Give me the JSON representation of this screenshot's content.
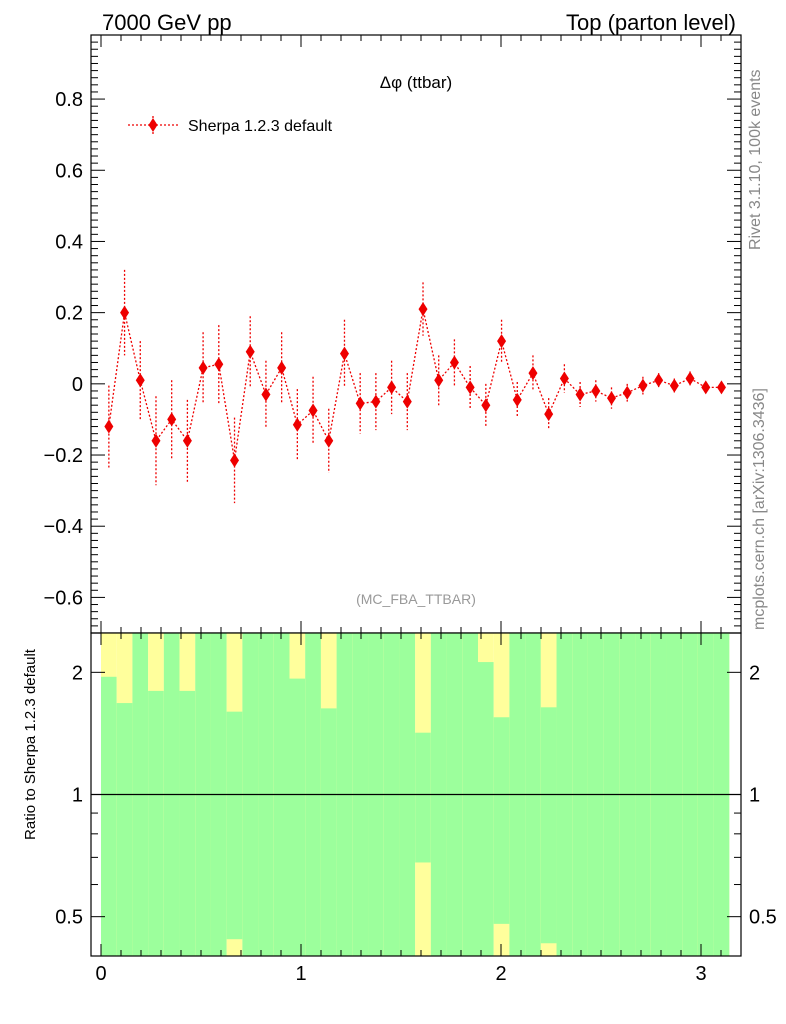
{
  "header": {
    "left": "7000 GeV pp",
    "right": "Top (parton level)"
  },
  "side": {
    "top": "Rivet 3.1.10,  100k events",
    "bottom": "mcplots.cern.ch [arXiv:1306.3436]"
  },
  "colors": {
    "series": "#ee0000",
    "band_inner": "#9cff9c",
    "band_outer": "#ffff9c",
    "ref_line": "#000000"
  },
  "chart_data": [
    {
      "type": "scatter",
      "title": "Δφ (ttbar)",
      "analysis_label": "(MC_FBA_TTBAR)",
      "xlim": [
        -0.05,
        3.2
      ],
      "ylim": [
        -0.7,
        0.98
      ],
      "yticks": [
        -0.6,
        -0.4,
        -0.2,
        0,
        0.2,
        0.4,
        0.6,
        0.8
      ],
      "ytick_labels": [
        "−0.6",
        "−0.4",
        "−0.2",
        "0",
        "0.2",
        "0.4",
        "0.6",
        "0.8"
      ],
      "legend_position": "top-left",
      "series": [
        {
          "name": "Sherpa 1.2.3 default",
          "style": "dotted line with diamond markers",
          "x": [
            0.0393,
            0.1178,
            0.1963,
            0.2749,
            0.3534,
            0.432,
            0.5105,
            0.589,
            0.6676,
            0.7461,
            0.8247,
            0.9032,
            0.9817,
            1.0603,
            1.1388,
            1.2174,
            1.2959,
            1.3744,
            1.453,
            1.5315,
            1.6101,
            1.6886,
            1.7671,
            1.8457,
            1.9242,
            2.0028,
            2.0813,
            2.1598,
            2.2384,
            2.3169,
            2.3955,
            2.474,
            2.5525,
            2.6311,
            2.7096,
            2.7882,
            2.8667,
            2.9452,
            3.0238,
            3.1023
          ],
          "y": [
            -0.12,
            0.2,
            0.01,
            -0.16,
            -0.1,
            -0.16,
            0.045,
            0.055,
            -0.215,
            0.09,
            -0.03,
            0.045,
            -0.115,
            -0.075,
            -0.16,
            0.085,
            -0.055,
            -0.05,
            -0.01,
            -0.05,
            0.21,
            0.01,
            0.06,
            -0.01,
            -0.06,
            0.12,
            -0.045,
            0.03,
            -0.085,
            0.015,
            -0.03,
            -0.02,
            -0.04,
            -0.025,
            -0.005,
            0.01,
            -0.005,
            0.015,
            -0.01,
            -0.01
          ],
          "yerr": [
            0.115,
            0.12,
            0.11,
            0.125,
            0.11,
            0.115,
            0.1,
            0.11,
            0.12,
            0.1,
            0.095,
            0.1,
            0.1,
            0.095,
            0.09,
            0.095,
            0.085,
            0.08,
            0.075,
            0.08,
            0.075,
            0.07,
            0.065,
            0.06,
            0.06,
            0.06,
            0.05,
            0.05,
            0.045,
            0.04,
            0.035,
            0.03,
            0.03,
            0.025,
            0.025,
            0.02,
            0.02,
            0.02,
            0.015,
            0.015
          ]
        }
      ]
    },
    {
      "type": "area",
      "ylabel": "Ratio to Sherpa 1.2.3 default",
      "xlim": [
        -0.05,
        3.2
      ],
      "ylog": true,
      "ylim": [
        0.4,
        2.5
      ],
      "yticks": [
        0.5,
        1,
        2
      ],
      "ytick_labels": [
        "0.5",
        "1",
        "2"
      ],
      "xticks": [
        0,
        1,
        2,
        3
      ],
      "xtick_labels": [
        "0",
        "1",
        "2",
        "3"
      ],
      "reference": 1,
      "band_x_edges": [
        0.0,
        0.0785,
        0.1571,
        0.2356,
        0.3142,
        0.3927,
        0.4712,
        0.5498,
        0.6283,
        0.7069,
        0.7854,
        0.8639,
        0.9425,
        1.021,
        1.0996,
        1.1781,
        1.2566,
        1.3352,
        1.4137,
        1.4923,
        1.5708,
        1.6493,
        1.7279,
        1.8064,
        1.885,
        1.9635,
        2.042,
        2.1206,
        2.1991,
        2.2777,
        2.3562,
        2.4347,
        2.5133,
        2.5918,
        2.6704,
        2.7489,
        2.8274,
        2.906,
        2.9845,
        3.0631,
        3.1416
      ],
      "band_inner_high": [
        1.95,
        1.68,
        2.5,
        1.8,
        2.5,
        1.8,
        2.5,
        2.5,
        1.6,
        2.5,
        2.5,
        2.5,
        1.93,
        2.5,
        1.63,
        2.5,
        2.5,
        2.5,
        2.5,
        2.5,
        1.42,
        2.5,
        2.5,
        2.5,
        2.12,
        1.55,
        2.5,
        2.5,
        1.64,
        2.5,
        2.5,
        2.5,
        2.5,
        2.5,
        2.5,
        2.5,
        2.5,
        2.5,
        2.5,
        2.5
      ],
      "band_outer_high": [
        2.5,
        2.5,
        2.5,
        2.5,
        2.5,
        2.5,
        2.5,
        2.5,
        2.5,
        2.5,
        2.5,
        2.5,
        2.5,
        2.5,
        2.5,
        2.5,
        2.5,
        2.5,
        2.5,
        2.5,
        2.5,
        2.5,
        2.5,
        2.5,
        2.5,
        2.5,
        2.5,
        2.5,
        2.5,
        2.5,
        2.5,
        2.5,
        2.5,
        2.5,
        2.5,
        2.5,
        2.5,
        2.5,
        2.5,
        2.5
      ],
      "band_inner_low": [
        0.4,
        0.4,
        0.4,
        0.4,
        0.4,
        0.4,
        0.4,
        0.4,
        0.44,
        0.4,
        0.4,
        0.4,
        0.4,
        0.4,
        0.4,
        0.4,
        0.4,
        0.4,
        0.4,
        0.4,
        0.68,
        0.4,
        0.4,
        0.4,
        0.4,
        0.48,
        0.4,
        0.4,
        0.43,
        0.4,
        0.4,
        0.4,
        0.4,
        0.4,
        0.4,
        0.4,
        0.4,
        0.4,
        0.4,
        0.4
      ],
      "band_outer_low": [
        0.4,
        0.4,
        0.4,
        0.4,
        0.4,
        0.4,
        0.4,
        0.4,
        0.4,
        0.4,
        0.4,
        0.4,
        0.4,
        0.4,
        0.4,
        0.4,
        0.4,
        0.4,
        0.4,
        0.4,
        0.4,
        0.4,
        0.4,
        0.4,
        0.4,
        0.4,
        0.4,
        0.4,
        0.4,
        0.4,
        0.4,
        0.4,
        0.4,
        0.4,
        0.4,
        0.4,
        0.4,
        0.4,
        0.4,
        0.4
      ]
    }
  ]
}
